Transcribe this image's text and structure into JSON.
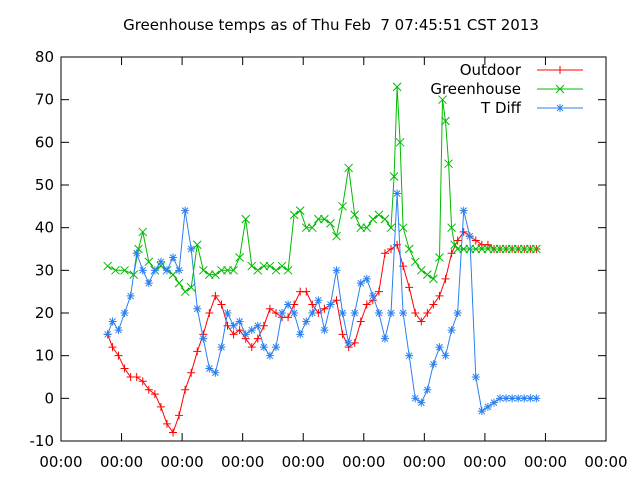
{
  "chart_data": {
    "type": "line",
    "title": "Greenhouse temps as of Thu Feb  7 07:45:51 CST 2013",
    "xlabel": "",
    "ylabel": "",
    "ylim": [
      -10,
      80
    ],
    "xlim": [
      0,
      9
    ],
    "x_tick_labels": [
      "00:00",
      "00:00",
      "00:00",
      "00:00",
      "00:00",
      "00:00",
      "00:00",
      "00:00",
      "00:00",
      "00:00"
    ],
    "y_ticks": [
      -10,
      0,
      10,
      20,
      30,
      40,
      50,
      60,
      70,
      80
    ],
    "grid": false,
    "legend_position": "top-right",
    "series": [
      {
        "name": "Outdoor",
        "color": "#ff0000",
        "marker": "plus",
        "x": [
          0.77,
          0.85,
          0.95,
          1.05,
          1.15,
          1.25,
          1.35,
          1.45,
          1.55,
          1.65,
          1.75,
          1.85,
          1.95,
          2.05,
          2.15,
          2.25,
          2.35,
          2.45,
          2.55,
          2.65,
          2.75,
          2.85,
          2.95,
          3.05,
          3.15,
          3.25,
          3.35,
          3.45,
          3.55,
          3.65,
          3.75,
          3.85,
          3.95,
          4.05,
          4.15,
          4.25,
          4.35,
          4.45,
          4.55,
          4.65,
          4.75,
          4.85,
          4.95,
          5.05,
          5.15,
          5.25,
          5.35,
          5.45,
          5.55,
          5.65,
          5.75,
          5.85,
          5.95,
          6.05,
          6.15,
          6.25,
          6.35,
          6.45,
          6.55,
          6.65,
          6.75,
          6.85,
          6.95,
          7.05,
          7.15,
          7.25,
          7.35,
          7.45,
          7.55,
          7.65,
          7.75,
          7.85
        ],
        "values": [
          15,
          12,
          10,
          7,
          5,
          5,
          4,
          2,
          1,
          -2,
          -6,
          -8,
          -4,
          2,
          6,
          11,
          15,
          20,
          24,
          22,
          17,
          15,
          16,
          14,
          12,
          14,
          17,
          21,
          20,
          19,
          19,
          22,
          25,
          25,
          22,
          20,
          21,
          22,
          23,
          15,
          12,
          13,
          18,
          22,
          23,
          25,
          34,
          35,
          36,
          31,
          26,
          20,
          18,
          20,
          22,
          24,
          28,
          34,
          37,
          39,
          38,
          37,
          36,
          36,
          35,
          35,
          35,
          35,
          35,
          35,
          35,
          35
        ]
      },
      {
        "name": "Greenhouse",
        "color": "#00bb00",
        "marker": "cross",
        "x": [
          0.77,
          0.9,
          1.05,
          1.2,
          1.28,
          1.35,
          1.45,
          1.55,
          1.65,
          1.75,
          1.85,
          1.95,
          2.05,
          2.15,
          2.25,
          2.35,
          2.45,
          2.55,
          2.65,
          2.75,
          2.85,
          2.95,
          3.05,
          3.15,
          3.25,
          3.35,
          3.45,
          3.55,
          3.65,
          3.75,
          3.85,
          3.95,
          4.05,
          4.15,
          4.25,
          4.35,
          4.45,
          4.55,
          4.65,
          4.75,
          4.85,
          4.95,
          5.05,
          5.15,
          5.25,
          5.35,
          5.45,
          5.5,
          5.55,
          5.6,
          5.65,
          5.75,
          5.85,
          5.95,
          6.05,
          6.15,
          6.25,
          6.3,
          6.35,
          6.4,
          6.45,
          6.5,
          6.55,
          6.65,
          6.75,
          6.85,
          6.95,
          7.05,
          7.15,
          7.25,
          7.35,
          7.45,
          7.55,
          7.65,
          7.75,
          7.85
        ],
        "values": [
          31,
          30,
          30,
          29,
          35,
          39,
          32,
          30,
          31,
          30,
          29,
          27,
          25,
          26,
          36,
          30,
          29,
          29,
          30,
          30,
          30,
          33,
          42,
          31,
          30,
          31,
          31,
          30,
          31,
          30,
          43,
          44,
          40,
          40,
          42,
          42,
          41,
          38,
          45,
          54,
          43,
          40,
          40,
          42,
          43,
          42,
          40,
          52,
          73,
          60,
          40,
          35,
          32,
          30,
          29,
          28,
          33,
          70,
          65,
          55,
          40,
          36,
          35,
          35,
          35,
          35,
          35,
          35,
          35,
          35,
          35,
          35,
          35,
          35,
          35,
          35
        ]
      },
      {
        "name": "T Diff",
        "color": "#2a80f0",
        "marker": "star",
        "x": [
          0.77,
          0.85,
          0.95,
          1.05,
          1.15,
          1.25,
          1.35,
          1.45,
          1.55,
          1.65,
          1.75,
          1.85,
          1.95,
          2.05,
          2.15,
          2.25,
          2.35,
          2.45,
          2.55,
          2.65,
          2.75,
          2.85,
          2.95,
          3.05,
          3.15,
          3.25,
          3.35,
          3.45,
          3.55,
          3.65,
          3.75,
          3.85,
          3.95,
          4.05,
          4.15,
          4.25,
          4.35,
          4.45,
          4.55,
          4.65,
          4.75,
          4.85,
          4.95,
          5.05,
          5.15,
          5.25,
          5.35,
          5.45,
          5.55,
          5.65,
          5.75,
          5.85,
          5.95,
          6.05,
          6.15,
          6.25,
          6.35,
          6.45,
          6.55,
          6.65,
          6.75,
          6.85,
          6.95,
          7.05,
          7.15,
          7.25,
          7.35,
          7.45,
          7.55,
          7.65,
          7.75,
          7.85
        ],
        "values": [
          15,
          18,
          16,
          20,
          24,
          34,
          30,
          27,
          30,
          32,
          30,
          33,
          30,
          44,
          35,
          21,
          14,
          7,
          6,
          12,
          20,
          17,
          18,
          15,
          16,
          17,
          12,
          10,
          12,
          20,
          22,
          20,
          15,
          18,
          20,
          23,
          16,
          22,
          30,
          20,
          13,
          20,
          27,
          28,
          24,
          20,
          14,
          20,
          48,
          20,
          10,
          0,
          -1,
          2,
          8,
          12,
          10,
          16,
          20,
          44,
          38,
          5,
          -3,
          -2,
          -1,
          0,
          0,
          0,
          0,
          0,
          0,
          0
        ]
      }
    ]
  }
}
